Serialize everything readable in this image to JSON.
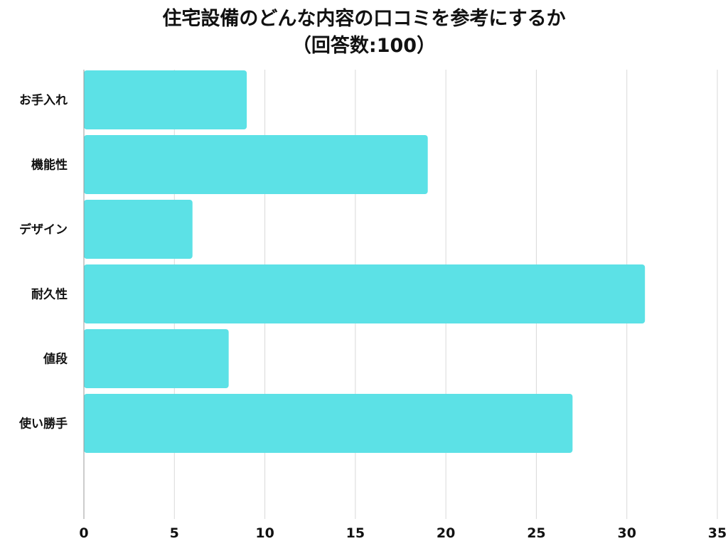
{
  "chart_data": {
    "type": "bar",
    "orientation": "horizontal",
    "title": "住宅設備のどんな内容の口コミを参考にするか",
    "subtitle": "（回答数:100）",
    "categories": [
      "お手入れ",
      "機能性",
      "デザイン",
      "耐久性",
      "値段",
      "使い勝手"
    ],
    "values": [
      9,
      19,
      6,
      31,
      8,
      27
    ],
    "xlim": [
      0,
      35
    ],
    "xticks": [
      "0",
      "5",
      "10",
      "15",
      "20",
      "25",
      "30",
      "35"
    ],
    "xlabel": "",
    "ylabel": "",
    "grid": "vertical",
    "legend": "none"
  },
  "colors": {
    "bar": "#5ce1e6",
    "grid": "#d9d9d9",
    "axis": "#999999",
    "text": "#111111"
  }
}
